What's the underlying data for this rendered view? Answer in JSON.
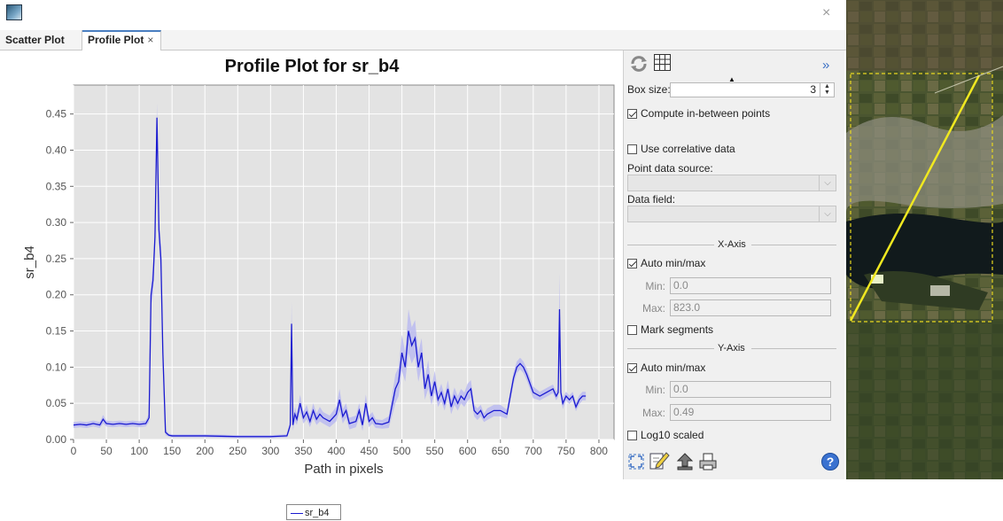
{
  "window": {
    "close_glyph": "×"
  },
  "tabs": [
    {
      "label": "Scatter Plot",
      "active": false
    },
    {
      "label": "Profile Plot",
      "active": true,
      "close_glyph": "×"
    }
  ],
  "chart_data": {
    "type": "line",
    "title": "Profile Plot for sr_b4",
    "xlabel": "Path in pixels",
    "ylabel": "sr_b4",
    "xlim": [
      0,
      823
    ],
    "ylim": [
      0,
      0.49
    ],
    "x_ticks": [
      0,
      50,
      100,
      150,
      200,
      250,
      300,
      350,
      400,
      450,
      500,
      550,
      600,
      650,
      700,
      750,
      800
    ],
    "y_ticks": [
      "0.00",
      "0.05",
      "0.10",
      "0.15",
      "0.20",
      "0.25",
      "0.30",
      "0.35",
      "0.40",
      "0.45"
    ],
    "grid": true,
    "legend_position": "bottom-center",
    "series": [
      {
        "name": "sr_b4",
        "color": "#1a1ad0",
        "band_color": "#b8b8f0",
        "x": [
          0,
          10,
          20,
          30,
          40,
          45,
          50,
          60,
          70,
          80,
          90,
          100,
          110,
          115,
          118,
          121,
          124,
          127,
          130,
          133,
          136,
          140,
          145,
          150,
          160,
          200,
          250,
          300,
          325,
          330,
          332,
          334,
          337,
          340,
          345,
          350,
          355,
          360,
          365,
          370,
          375,
          380,
          390,
          400,
          405,
          410,
          415,
          420,
          430,
          435,
          440,
          445,
          450,
          455,
          460,
          470,
          480,
          490,
          495,
          500,
          505,
          510,
          515,
          520,
          525,
          530,
          535,
          540,
          545,
          550,
          555,
          560,
          565,
          570,
          575,
          580,
          585,
          590,
          595,
          600,
          605,
          610,
          615,
          620,
          625,
          630,
          640,
          650,
          660,
          665,
          670,
          675,
          680,
          685,
          690,
          700,
          710,
          720,
          730,
          735,
          738,
          740,
          742,
          745,
          750,
          755,
          760,
          765,
          770,
          775,
          780
        ],
        "y": [
          0.02,
          0.021,
          0.02,
          0.022,
          0.02,
          0.028,
          0.022,
          0.021,
          0.022,
          0.021,
          0.022,
          0.021,
          0.022,
          0.03,
          0.2,
          0.22,
          0.28,
          0.445,
          0.29,
          0.25,
          0.12,
          0.01,
          0.006,
          0.005,
          0.005,
          0.005,
          0.004,
          0.004,
          0.005,
          0.02,
          0.16,
          0.02,
          0.035,
          0.028,
          0.05,
          0.03,
          0.038,
          0.025,
          0.04,
          0.028,
          0.035,
          0.03,
          0.025,
          0.035,
          0.055,
          0.032,
          0.04,
          0.022,
          0.025,
          0.04,
          0.02,
          0.05,
          0.025,
          0.03,
          0.022,
          0.021,
          0.024,
          0.07,
          0.08,
          0.12,
          0.1,
          0.15,
          0.13,
          0.14,
          0.1,
          0.12,
          0.07,
          0.09,
          0.06,
          0.08,
          0.055,
          0.065,
          0.05,
          0.07,
          0.045,
          0.06,
          0.05,
          0.06,
          0.055,
          0.065,
          0.07,
          0.04,
          0.035,
          0.04,
          0.03,
          0.035,
          0.04,
          0.04,
          0.035,
          0.06,
          0.085,
          0.1,
          0.105,
          0.1,
          0.09,
          0.065,
          0.06,
          0.065,
          0.07,
          0.06,
          0.065,
          0.18,
          0.065,
          0.05,
          0.06,
          0.055,
          0.06,
          0.045,
          0.055,
          0.06,
          0.06
        ],
        "band_width": [
          0.004,
          0.004,
          0.004,
          0.004,
          0.004,
          0.006,
          0.004,
          0.004,
          0.004,
          0.004,
          0.004,
          0.004,
          0.004,
          0.006,
          0.015,
          0.02,
          0.02,
          0.02,
          0.02,
          0.02,
          0.02,
          0.004,
          0.002,
          0.002,
          0.002,
          0.002,
          0.002,
          0.002,
          0.002,
          0.006,
          0.03,
          0.008,
          0.01,
          0.008,
          0.012,
          0.008,
          0.01,
          0.008,
          0.01,
          0.008,
          0.01,
          0.008,
          0.008,
          0.01,
          0.015,
          0.01,
          0.01,
          0.008,
          0.008,
          0.01,
          0.008,
          0.012,
          0.008,
          0.008,
          0.006,
          0.006,
          0.008,
          0.02,
          0.02,
          0.025,
          0.02,
          0.03,
          0.025,
          0.025,
          0.02,
          0.02,
          0.015,
          0.02,
          0.012,
          0.015,
          0.01,
          0.012,
          0.01,
          0.012,
          0.01,
          0.012,
          0.01,
          0.01,
          0.01,
          0.012,
          0.012,
          0.008,
          0.008,
          0.008,
          0.006,
          0.008,
          0.008,
          0.008,
          0.006,
          0.008,
          0.008,
          0.008,
          0.008,
          0.008,
          0.008,
          0.008,
          0.006,
          0.006,
          0.006,
          0.006,
          0.006,
          0.05,
          0.008,
          0.008,
          0.006,
          0.006,
          0.006,
          0.006,
          0.006,
          0.006,
          0.006
        ]
      }
    ]
  },
  "sidebar": {
    "more_glyph": "»",
    "box_size_label": "Box size:",
    "box_size_value": "3",
    "compute_in_between": {
      "label": "Compute in-between points",
      "checked": true
    },
    "use_correlative": {
      "label": "Use correlative data",
      "checked": false
    },
    "point_data_source_label": "Point data source:",
    "data_field_label": "Data field:",
    "x_axis": {
      "title": "X-Axis",
      "auto_label": "Auto min/max",
      "auto_checked": true,
      "min_label": "Min:",
      "min_value": "0.0",
      "max_label": "Max:",
      "max_value": "823.0"
    },
    "mark_segments": {
      "label": "Mark segments",
      "checked": false
    },
    "y_axis": {
      "title": "Y-Axis",
      "auto_label": "Auto min/max",
      "auto_checked": true,
      "min_label": "Min:",
      "min_value": "0.0",
      "max_label": "Max:",
      "max_value": "0.49"
    },
    "log10": {
      "label": "Log10 scaled",
      "checked": false
    },
    "icons": [
      "refresh-icon",
      "table-icon",
      "zoom-all-icon",
      "edit-icon",
      "export-icon",
      "print-icon",
      "help-icon"
    ]
  }
}
